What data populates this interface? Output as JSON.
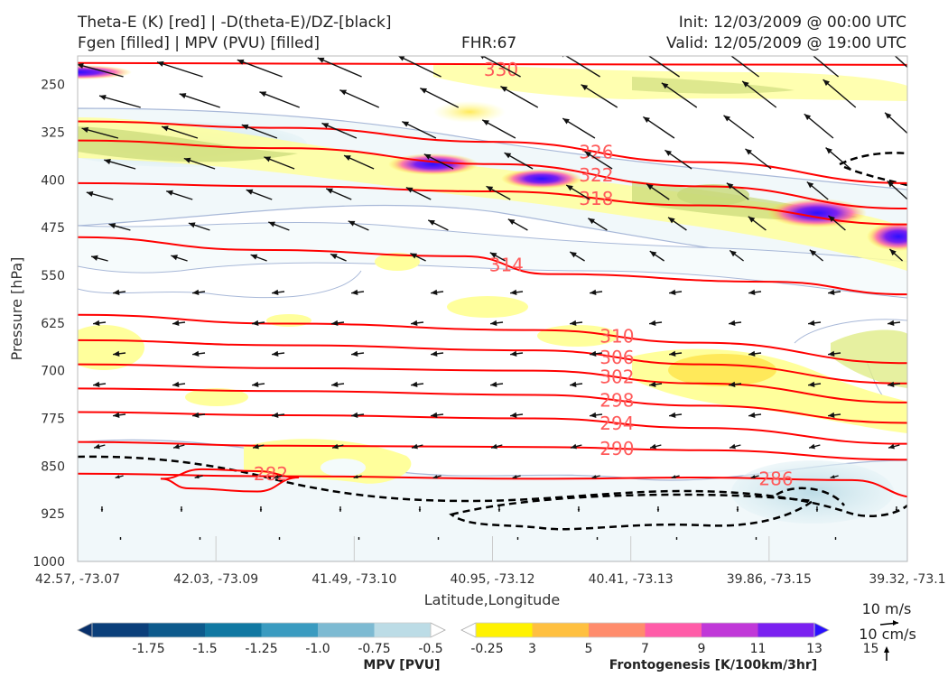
{
  "header": {
    "title_line1": "Theta-E (K) [red] | -D(theta-E)/DZ-[black]",
    "title_line2": "Fgen [filled] | MPV (PVU) [filled]",
    "fhr": "FHR:67",
    "init": "Init: 12/03/2009 @ 00:00 UTC",
    "valid": "Valid: 12/05/2009 @ 19:00 UTC"
  },
  "chart_data": {
    "type": "cross-section",
    "ylabel": "Pressure [hPa]",
    "xlabel": "Latitude,Longitude",
    "y_ticks": [
      250,
      325,
      400,
      475,
      550,
      625,
      700,
      775,
      850,
      925,
      1000
    ],
    "ylim": [
      1000,
      205
    ],
    "x_ticks": [
      "42.57, -73.07",
      "42.03, -73.09",
      "41.49, -73.10",
      "40.95, -73.12",
      "40.41, -73.13",
      "39.86, -73.15",
      "39.32, -73.1"
    ],
    "theta_e_contours": [
      {
        "value": "330",
        "points": [
          [
            0,
            216
          ],
          [
            3,
            218
          ],
          [
            6,
            219
          ],
          [
            10,
            221
          ]
        ]
      },
      {
        "value": "326",
        "points": [
          [
            0,
            308
          ],
          [
            1.5,
            318
          ],
          [
            3,
            340
          ],
          [
            4.5,
            372
          ],
          [
            6,
            405
          ],
          [
            6.5,
            430
          ]
        ]
      },
      {
        "value": "322",
        "points": [
          [
            0,
            338
          ],
          [
            1.5,
            350
          ],
          [
            3,
            375
          ],
          [
            4.5,
            410
          ],
          [
            6,
            445
          ],
          [
            6.5,
            470
          ]
        ]
      },
      {
        "value": "318",
        "points": [
          [
            0,
            405
          ],
          [
            1.5,
            410
          ],
          [
            3,
            418
          ],
          [
            4.5,
            440
          ],
          [
            6,
            470
          ],
          [
            6.5,
            490
          ]
        ]
      },
      {
        "value": "314",
        "points": [
          [
            0,
            490
          ],
          [
            1.3,
            510
          ],
          [
            2.8,
            520
          ],
          [
            3.4,
            548
          ],
          [
            5,
            560
          ],
          [
            6,
            580
          ],
          [
            6.5,
            590
          ]
        ]
      },
      {
        "value": "310",
        "points": [
          [
            0,
            612
          ],
          [
            1.5,
            626
          ],
          [
            3.3,
            636
          ],
          [
            4.5,
            656
          ],
          [
            6,
            688
          ],
          [
            6.5,
            700
          ]
        ]
      },
      {
        "value": "306",
        "points": [
          [
            0,
            652
          ],
          [
            1.5,
            660
          ],
          [
            3.3,
            668
          ],
          [
            4.5,
            690
          ],
          [
            6,
            720
          ],
          [
            6.5,
            735
          ]
        ]
      },
      {
        "value": "302",
        "points": [
          [
            0,
            690
          ],
          [
            1.5,
            696
          ],
          [
            3.3,
            700
          ],
          [
            4.5,
            720
          ],
          [
            6,
            750
          ],
          [
            6.5,
            765
          ]
        ]
      },
      {
        "value": "298",
        "points": [
          [
            0,
            728
          ],
          [
            1.5,
            732
          ],
          [
            3.3,
            738
          ],
          [
            4.5,
            755
          ],
          [
            6,
            782
          ],
          [
            6.5,
            798
          ]
        ]
      },
      {
        "value": "294",
        "points": [
          [
            0,
            765
          ],
          [
            1.5,
            770
          ],
          [
            3.3,
            775
          ],
          [
            4.5,
            790
          ],
          [
            6,
            815
          ],
          [
            6.5,
            828
          ]
        ]
      },
      {
        "value": "290",
        "points": [
          [
            0,
            812
          ],
          [
            1.5,
            818
          ],
          [
            3.3,
            820
          ],
          [
            4.5,
            825
          ],
          [
            6,
            840
          ],
          [
            6.5,
            850
          ]
        ]
      },
      {
        "value": "286",
        "points": [
          [
            0,
            862
          ],
          [
            1.5,
            866
          ],
          [
            3.3,
            870
          ],
          [
            4.5,
            868
          ],
          [
            5.6,
            872
          ],
          [
            6.1,
            900
          ],
          [
            6.2,
            960
          ],
          [
            6.5,
            1000
          ]
        ]
      },
      {
        "value": "282",
        "points": [
          [
            0.6,
            870
          ],
          [
            0.9,
            855
          ],
          [
            1.3,
            858
          ],
          [
            1.6,
            868
          ],
          [
            1.3,
            890
          ],
          [
            0.8,
            885
          ],
          [
            0.6,
            870
          ]
        ]
      }
    ],
    "colorbar_mpv": {
      "title": "MPV [PVU]",
      "ticks": [
        "-1.75",
        "-1.5",
        "-1.25",
        "-1.0",
        "-0.75",
        "-0.5",
        "-0.25"
      ],
      "colors": [
        "#08306b",
        "#0b3f7a",
        "#0d5a8c",
        "#1178a2",
        "#3a9bc0",
        "#7dbad2",
        "#bcdce6",
        "#ffffff"
      ]
    },
    "colorbar_fgen": {
      "title": "Frontogenesis [K/100km/3hr]",
      "ticks": [
        "3",
        "5",
        "7",
        "9",
        "11",
        "13",
        "15"
      ],
      "colors": [
        "#ffffff",
        "#fff200",
        "#ffc040",
        "#ff8c6c",
        "#ff5ca8",
        "#c038d8",
        "#7a20f0",
        "#2a10ff"
      ]
    },
    "reference_vectors": {
      "horizontal": "10 m/s",
      "vertical": "10 cm/s"
    }
  }
}
